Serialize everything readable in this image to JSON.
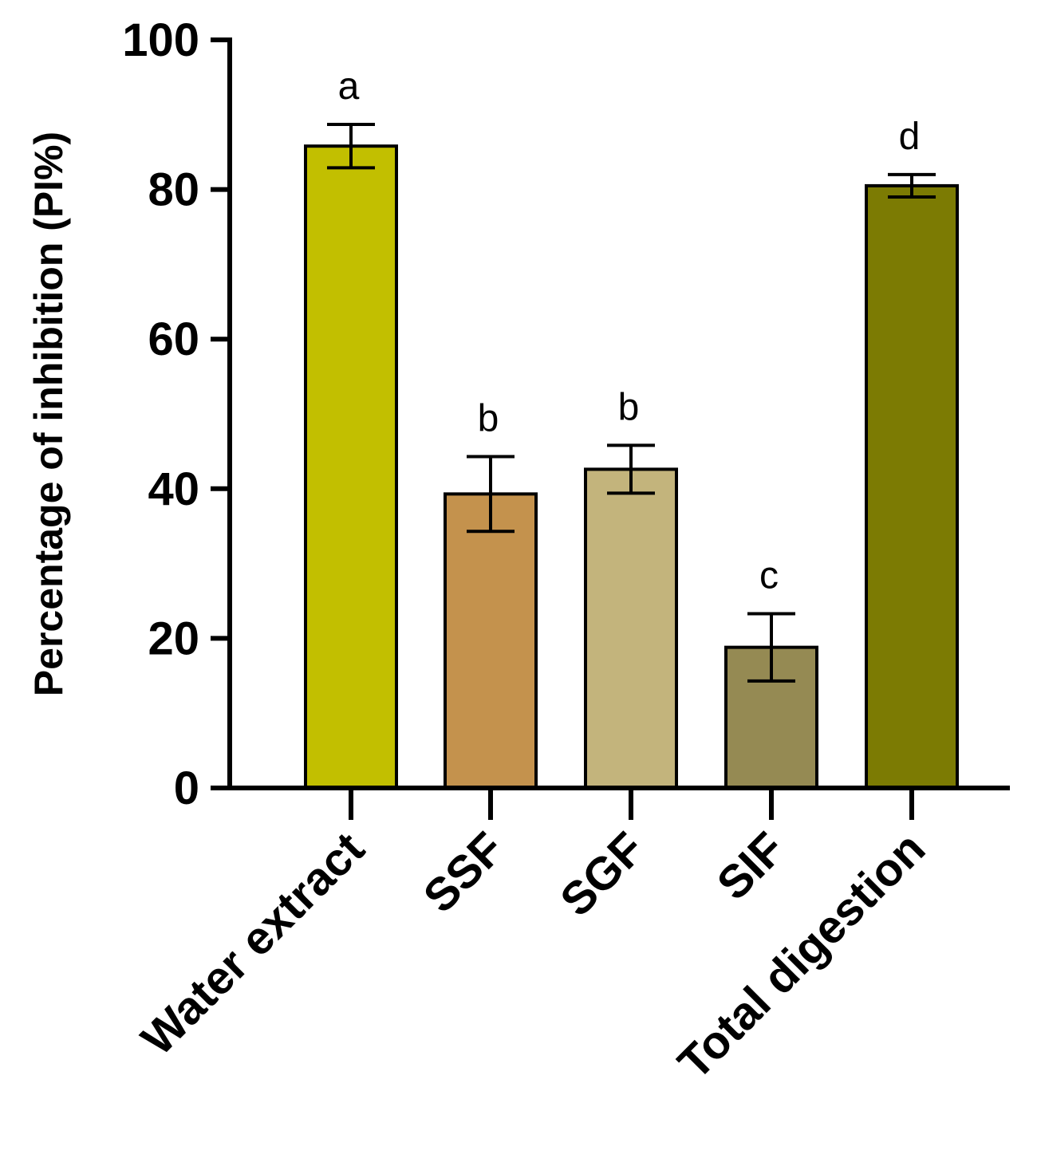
{
  "chart_data": {
    "type": "bar",
    "title": "",
    "xlabel": "",
    "ylabel": "Percentage of inhibition (PI%)",
    "ylim": [
      0,
      100
    ],
    "yticks": [
      0,
      20,
      40,
      60,
      80,
      100
    ],
    "grid": false,
    "categories": [
      "Water extract",
      "SSF",
      "SGF",
      "SIF",
      "Total digestion"
    ],
    "values": [
      85.8,
      39.3,
      42.6,
      18.8,
      80.5
    ],
    "errors": [
      2.9,
      5.0,
      3.2,
      4.5,
      1.5
    ],
    "significance_labels": [
      "a",
      "b",
      "b",
      "c",
      "d"
    ],
    "colors": [
      "#c2bf00",
      "#c4924d",
      "#c3b47c",
      "#958a53",
      "#7c7b03"
    ]
  }
}
